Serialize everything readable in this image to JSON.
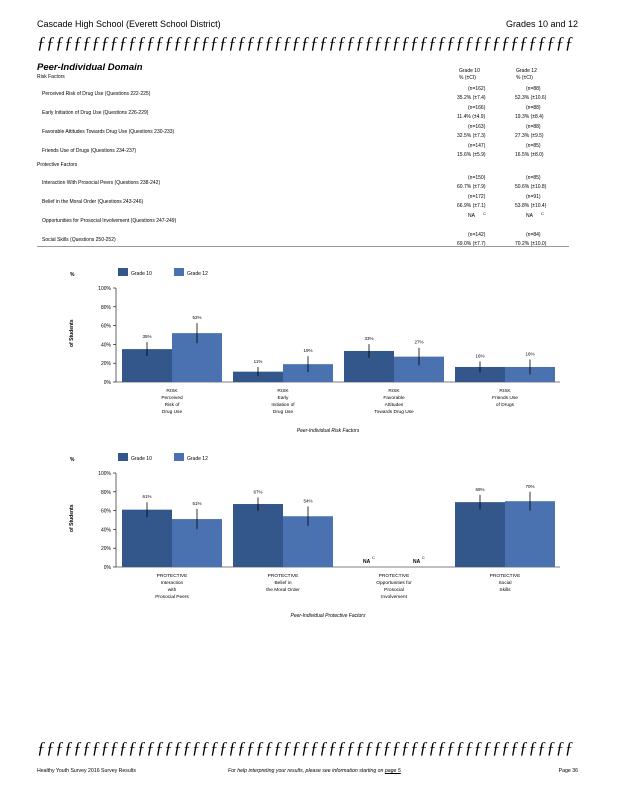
{
  "header": {
    "school": "Cascade   High   School   (Everett   School   District)",
    "grades": "Grades   10  and  12",
    "rule": "ƒƒƒƒƒƒƒƒƒƒƒƒƒƒƒƒƒƒƒƒƒƒƒƒƒƒƒƒƒƒƒƒƒƒƒƒƒƒƒƒƒƒƒƒƒƒƒƒƒƒƒƒƒƒƒƒƒƒƒ"
  },
  "domain": {
    "title": "Peer-Individual     Domain",
    "risk_label": "Risk   Factors",
    "protective_label": "Protective    Factors",
    "col_headers": [
      {
        "grade": "Grade   10",
        "pct": "%   (±CI)"
      },
      {
        "grade": "Grade   12",
        "pct": "%   (±CI)"
      }
    ],
    "rows": [
      {
        "label": "Perceived     Risk    of Drug  Use   (Questions     222-225)",
        "g10_n": "(n=162)",
        "g10": "35.2%   (±7.4)",
        "g12_n": "(n=88)",
        "g12": "52.3%   (±10.6)"
      },
      {
        "label": "Early   Initiation    of Drug  Use   (Questions     226-229)",
        "g10_n": "(n=166)",
        "g10": "11.4%   (±4.9)",
        "g12_n": "(n=88)",
        "g12": "19.3%   (±8.4)"
      },
      {
        "label": "Favorable    Attitudes    Towards   Drug  Use   (Questions    230-233)",
        "g10_n": "(n=163)",
        "g10": "32.5%   (±7.3)",
        "g12_n": "(n=88)",
        "g12": "27.3%   (±9.5)"
      },
      {
        "label": "Friends   Use  of Drugs   (Questions    234-237)",
        "g10_n": "(n=147)",
        "g10": "15.6%   (±5.9)",
        "g12_n": "(n=85)",
        "g12": "16.5%   (±8.0)"
      },
      {
        "label": "Interaction    With  Prosocial    Peers   (Questions    238-242)",
        "g10_n": "(n=150)",
        "g10": "60.7%   (±7.9)",
        "g12_n": "(n=85)",
        "g12": "50.6%   (±10.8)"
      },
      {
        "label": "Belief   in  the  Moral  Order   (Questions    243-246)",
        "g10_n": "(n=172)",
        "g10": "66.9%   (±7.1)",
        "g12_n": "(n=91)",
        "g12": "53.8%   (±10.4)"
      },
      {
        "label": "Opportunities      for  Prosocial    Involvement      (Questions    247-249)",
        "g10_n": "NA",
        "g10": "",
        "g12_n": "NA",
        "g12": "",
        "sup": "C"
      },
      {
        "label": "Social   Skills   (Questions     250-252)",
        "g10_n": "(n=142)",
        "g10": "69.0%   (±7.7)",
        "g12_n": "(n=84)",
        "g12": "70.2%   (±10.0)"
      }
    ]
  },
  "legend": {
    "g10": "Grade   10",
    "g12": "Grade   12",
    "pct": "%",
    "ylabel": "of  Students"
  },
  "colors": {
    "g10": "#34578b",
    "g12": "#4a72b0"
  },
  "chart_data": [
    {
      "type": "bar",
      "title": "Peer-Individual       Risk     Factors",
      "ylabel": "%  of Students",
      "yticks": [
        "100%",
        "80%",
        "60%",
        "40%",
        "20%",
        "0%"
      ],
      "ylim": [
        0,
        100
      ],
      "categories": [
        [
          "RISK",
          "Perceived",
          "Risk    of",
          "Drug   Use"
        ],
        [
          "RISK",
          "Early",
          "Initiation     of",
          "Drug   Use"
        ],
        [
          "RISK",
          "Favorable",
          "Attitudes",
          "Towards    Drug   Use"
        ],
        [
          "RISK",
          "Friends    Use",
          "of  Drugs"
        ]
      ],
      "series": [
        {
          "name": "Grade   10",
          "values": [
            35,
            11,
            33,
            16
          ],
          "labels": [
            "35%",
            "11%",
            "33%",
            "16%"
          ],
          "ci": [
            7.4,
            4.9,
            7.3,
            5.9
          ]
        },
        {
          "name": "Grade   12",
          "values": [
            52,
            19,
            27,
            16
          ],
          "labels": [
            "52%",
            "19%",
            "27%",
            "16%"
          ],
          "ci": [
            10.6,
            8.4,
            9.5,
            8.0
          ]
        }
      ]
    },
    {
      "type": "bar",
      "title": "Peer-Individual       Protective       Factors",
      "ylabel": "%  of Students",
      "yticks": [
        "100%",
        "80%",
        "60%",
        "40%",
        "20%",
        "0%"
      ],
      "ylim": [
        0,
        100
      ],
      "categories": [
        [
          "PROTECTIVE",
          "Interaction",
          "with",
          "Prosocial     Peers"
        ],
        [
          "PROTECTIVE",
          "Belief    in",
          "the  Moral   Order"
        ],
        [
          "PROTECTIVE",
          "Opportunities        for",
          "Prosocial",
          "Involvement"
        ],
        [
          "PROTECTIVE",
          "Social",
          "Skills"
        ]
      ],
      "series": [
        {
          "name": "Grade   10",
          "values": [
            61,
            67,
            null,
            69
          ],
          "labels": [
            "61%",
            "67%",
            "NA",
            "69%"
          ],
          "ci": [
            7.9,
            7.1,
            null,
            7.7
          ]
        },
        {
          "name": "Grade   12",
          "values": [
            51,
            54,
            null,
            70
          ],
          "labels": [
            "51%",
            "54%",
            "NA",
            "70%"
          ],
          "ci": [
            10.8,
            10.4,
            null,
            10.0
          ]
        }
      ],
      "na_sup": "C"
    }
  ],
  "footer": {
    "rule": "ƒƒƒƒƒƒƒƒƒƒƒƒƒƒƒƒƒƒƒƒƒƒƒƒƒƒƒƒƒƒƒƒƒƒƒƒƒƒƒƒƒƒƒƒƒƒƒƒƒƒƒƒƒƒƒƒƒƒƒ",
    "survey": "Healthy   Youth  Survey   2016  Survey   Results",
    "help": "For  help  interpreting    your  results,  please   see  information    starting   on",
    "help_link": "page  5",
    "page": "Page   36"
  }
}
